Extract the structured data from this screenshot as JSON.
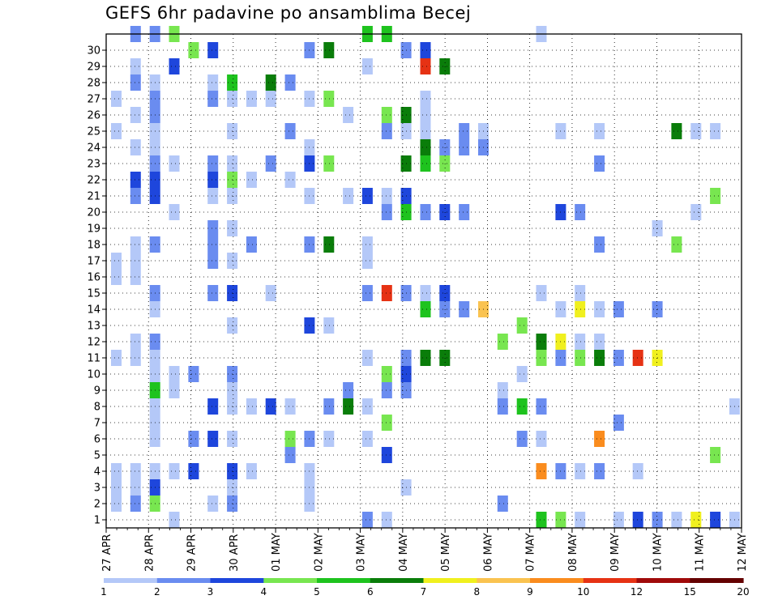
{
  "chart_data": {
    "type": "heatmap",
    "title": "GEFS 6hr padavine po ansamblima Becej",
    "xlabel": "",
    "ylabel": "",
    "x_ticks": [
      "27 APR",
      "28 APR",
      "29 APR",
      "30 APR",
      "01 MAY",
      "02 MAY",
      "03 MAY",
      "04 MAY",
      "05 MAY",
      "06 MAY",
      "07 MAY",
      "08 MAY",
      "09 MAY",
      "10 MAY",
      "11 MAY",
      "12 MAY"
    ],
    "y_ticks": [
      "1",
      "2",
      "3",
      "4",
      "5",
      "6",
      "7",
      "8",
      "9",
      "10",
      "11",
      "12",
      "13",
      "14",
      "15",
      "16",
      "17",
      "18",
      "19",
      "20",
      "21",
      "22",
      "23",
      "24",
      "25",
      "26",
      "27",
      "28",
      "29",
      "30"
    ],
    "x_unit": "6-hourly steps from 27 APR",
    "y_range": [
      0,
      30
    ],
    "grid": true,
    "colorbar": {
      "ticks": [
        "1",
        "2",
        "3",
        "4",
        "5",
        "6",
        "7",
        "8",
        "9",
        "10",
        "12",
        "15",
        "20"
      ],
      "colors": [
        "#b4c8f8",
        "#6a8cf0",
        "#1e46dc",
        "#78e650",
        "#1ec31e",
        "#0a7d0a",
        "#f0f01e",
        "#fac350",
        "#fa8c1e",
        "#e63214",
        "#a00a0a",
        "#640000"
      ]
    },
    "cells": [
      [
        1,
        30,
        2
      ],
      [
        2,
        30,
        2
      ],
      [
        3,
        30,
        4
      ],
      [
        13,
        30,
        5
      ],
      [
        14,
        30,
        5
      ],
      [
        22,
        30,
        1
      ],
      [
        4,
        29,
        4
      ],
      [
        5,
        29,
        3
      ],
      [
        10,
        29,
        2
      ],
      [
        11,
        29,
        6
      ],
      [
        15,
        29,
        2
      ],
      [
        16,
        29,
        3
      ],
      [
        1,
        28,
        1
      ],
      [
        3,
        28,
        3
      ],
      [
        13,
        28,
        1
      ],
      [
        16,
        28,
        10
      ],
      [
        17,
        28,
        6
      ],
      [
        1,
        27,
        2
      ],
      [
        2,
        27,
        1
      ],
      [
        5,
        27,
        1
      ],
      [
        6,
        27,
        5
      ],
      [
        8,
        27,
        6
      ],
      [
        9,
        27,
        2
      ],
      [
        0,
        26,
        1
      ],
      [
        2,
        26,
        2
      ],
      [
        5,
        26,
        2
      ],
      [
        6,
        26,
        1
      ],
      [
        7,
        26,
        1
      ],
      [
        8,
        26,
        1
      ],
      [
        10,
        26,
        1
      ],
      [
        11,
        26,
        4
      ],
      [
        16,
        26,
        1
      ],
      [
        1,
        25,
        1
      ],
      [
        2,
        25,
        2
      ],
      [
        12,
        25,
        1
      ],
      [
        14,
        25,
        4
      ],
      [
        15,
        25,
        6
      ],
      [
        16,
        25,
        4
      ],
      [
        16,
        25,
        1
      ],
      [
        0,
        24,
        1
      ],
      [
        2,
        24,
        1
      ],
      [
        6,
        24,
        1
      ],
      [
        9,
        24,
        2
      ],
      [
        14,
        24,
        2
      ],
      [
        15,
        24,
        1
      ],
      [
        16,
        24,
        1
      ],
      [
        18,
        24,
        2
      ],
      [
        19,
        24,
        1
      ],
      [
        23,
        24,
        1
      ],
      [
        25,
        24,
        1
      ],
      [
        29,
        24,
        6
      ],
      [
        30,
        24,
        1
      ],
      [
        31,
        24,
        1
      ],
      [
        1,
        23,
        1
      ],
      [
        2,
        23,
        1
      ],
      [
        10,
        23,
        1
      ],
      [
        16,
        23,
        6
      ],
      [
        17,
        23,
        2
      ],
      [
        18,
        23,
        2
      ],
      [
        19,
        23,
        2
      ],
      [
        2,
        22,
        2
      ],
      [
        3,
        22,
        1
      ],
      [
        5,
        22,
        2
      ],
      [
        6,
        22,
        1
      ],
      [
        8,
        22,
        2
      ],
      [
        10,
        22,
        3
      ],
      [
        11,
        22,
        4
      ],
      [
        15,
        22,
        6
      ],
      [
        16,
        22,
        5
      ],
      [
        17,
        22,
        4
      ],
      [
        25,
        22,
        2
      ],
      [
        1,
        21,
        3
      ],
      [
        2,
        21,
        3
      ],
      [
        5,
        21,
        3
      ],
      [
        6,
        21,
        4
      ],
      [
        7,
        21,
        1
      ],
      [
        9,
        21,
        1
      ],
      [
        1,
        20,
        2
      ],
      [
        2,
        20,
        3
      ],
      [
        5,
        20,
        1
      ],
      [
        6,
        20,
        1
      ],
      [
        10,
        20,
        1
      ],
      [
        12,
        20,
        1
      ],
      [
        13,
        20,
        3
      ],
      [
        14,
        20,
        1
      ],
      [
        15,
        20,
        1
      ],
      [
        15,
        20,
        3
      ],
      [
        31,
        20,
        4
      ],
      [
        3,
        19,
        1
      ],
      [
        14,
        19,
        2
      ],
      [
        15,
        19,
        5
      ],
      [
        16,
        19,
        2
      ],
      [
        17,
        19,
        3
      ],
      [
        18,
        19,
        2
      ],
      [
        23,
        19,
        3
      ],
      [
        24,
        19,
        2
      ],
      [
        30,
        19,
        1
      ],
      [
        5,
        18,
        2
      ],
      [
        6,
        18,
        1
      ],
      [
        28,
        18,
        1
      ],
      [
        1,
        17,
        1
      ],
      [
        2,
        17,
        2
      ],
      [
        5,
        17,
        2
      ],
      [
        7,
        17,
        2
      ],
      [
        10,
        17,
        2
      ],
      [
        11,
        17,
        6
      ],
      [
        13,
        17,
        1
      ],
      [
        25,
        17,
        2
      ],
      [
        29,
        17,
        4
      ],
      [
        0,
        16,
        1
      ],
      [
        1,
        16,
        1
      ],
      [
        5,
        16,
        2
      ],
      [
        6,
        16,
        1
      ],
      [
        13,
        16,
        1
      ],
      [
        1,
        15,
        1
      ],
      [
        0,
        15,
        1
      ],
      [
        2,
        14,
        2
      ],
      [
        5,
        14,
        2
      ],
      [
        6,
        14,
        3
      ],
      [
        8,
        14,
        1
      ],
      [
        13,
        14,
        2
      ],
      [
        14,
        14,
        10
      ],
      [
        15,
        14,
        2
      ],
      [
        16,
        14,
        1
      ],
      [
        17,
        14,
        3
      ],
      [
        22,
        14,
        1
      ],
      [
        24,
        14,
        1
      ],
      [
        2,
        13,
        1
      ],
      [
        16,
        13,
        5
      ],
      [
        17,
        13,
        2
      ],
      [
        18,
        13,
        2
      ],
      [
        19,
        13,
        8
      ],
      [
        23,
        13,
        1
      ],
      [
        24,
        13,
        7
      ],
      [
        25,
        13,
        1
      ],
      [
        26,
        13,
        2
      ],
      [
        28,
        13,
        2
      ],
      [
        6,
        12,
        1
      ],
      [
        10,
        12,
        3
      ],
      [
        11,
        12,
        1
      ],
      [
        21,
        12,
        4
      ],
      [
        1,
        11,
        1
      ],
      [
        2,
        11,
        2
      ],
      [
        20,
        11,
        4
      ],
      [
        22,
        11,
        6
      ],
      [
        23,
        11,
        7
      ],
      [
        24,
        11,
        1
      ],
      [
        25,
        11,
        1
      ],
      [
        0,
        10,
        1
      ],
      [
        1,
        10,
        1
      ],
      [
        2,
        10,
        1
      ],
      [
        13,
        10,
        1
      ],
      [
        15,
        10,
        2
      ],
      [
        16,
        10,
        6
      ],
      [
        17,
        10,
        6
      ],
      [
        22,
        10,
        4
      ],
      [
        23,
        10,
        2
      ],
      [
        24,
        10,
        4
      ],
      [
        25,
        10,
        6
      ],
      [
        26,
        10,
        2
      ],
      [
        27,
        10,
        10
      ],
      [
        28,
        10,
        7
      ],
      [
        2,
        9,
        1
      ],
      [
        3,
        9,
        1
      ],
      [
        4,
        9,
        2
      ],
      [
        6,
        9,
        2
      ],
      [
        14,
        9,
        4
      ],
      [
        15,
        9,
        3
      ],
      [
        21,
        9,
        1
      ],
      [
        2,
        8,
        5
      ],
      [
        3,
        8,
        1
      ],
      [
        6,
        8,
        1
      ],
      [
        12,
        8,
        2
      ],
      [
        14,
        8,
        2
      ],
      [
        15,
        8,
        2
      ],
      [
        20,
        8,
        1
      ],
      [
        2,
        7,
        1
      ],
      [
        5,
        7,
        3
      ],
      [
        6,
        7,
        1
      ],
      [
        7,
        7,
        1
      ],
      [
        8,
        7,
        3
      ],
      [
        9,
        7,
        1
      ],
      [
        11,
        7,
        2
      ],
      [
        12,
        7,
        6
      ],
      [
        13,
        7,
        1
      ],
      [
        20,
        7,
        2
      ],
      [
        21,
        7,
        5
      ],
      [
        22,
        7,
        2
      ],
      [
        32,
        7,
        1
      ],
      [
        2,
        6,
        1
      ],
      [
        14,
        6,
        4
      ],
      [
        26,
        6,
        2
      ],
      [
        2,
        5,
        1
      ],
      [
        4,
        5,
        2
      ],
      [
        5,
        5,
        3
      ],
      [
        6,
        5,
        1
      ],
      [
        9,
        5,
        4
      ],
      [
        10,
        5,
        2
      ],
      [
        11,
        5,
        1
      ],
      [
        13,
        5,
        1
      ],
      [
        21,
        5,
        2
      ],
      [
        22,
        5,
        1
      ],
      [
        25,
        5,
        9
      ],
      [
        9,
        4,
        2
      ],
      [
        14,
        4,
        3
      ],
      [
        31,
        4,
        4
      ],
      [
        0,
        3,
        1
      ],
      [
        1,
        3,
        1
      ],
      [
        2,
        3,
        1
      ],
      [
        3,
        3,
        1
      ],
      [
        4,
        3,
        3
      ],
      [
        6,
        3,
        3
      ],
      [
        7,
        3,
        1
      ],
      [
        10,
        3,
        1
      ],
      [
        22,
        3,
        9
      ],
      [
        23,
        3,
        2
      ],
      [
        24,
        3,
        1
      ],
      [
        25,
        3,
        2
      ],
      [
        27,
        3,
        1
      ],
      [
        0,
        2,
        1
      ],
      [
        1,
        2,
        1
      ],
      [
        2,
        2,
        3
      ],
      [
        6,
        2,
        1
      ],
      [
        10,
        2,
        1
      ],
      [
        15,
        2,
        1
      ],
      [
        0,
        1,
        1
      ],
      [
        1,
        1,
        2
      ],
      [
        2,
        1,
        4
      ],
      [
        5,
        1,
        1
      ],
      [
        6,
        1,
        2
      ],
      [
        10,
        1,
        1
      ],
      [
        20,
        1,
        2
      ],
      [
        3,
        0,
        1
      ],
      [
        13,
        0,
        2
      ],
      [
        14,
        0,
        1
      ],
      [
        22,
        0,
        5
      ],
      [
        23,
        0,
        4
      ],
      [
        24,
        0,
        1
      ],
      [
        26,
        0,
        1
      ],
      [
        27,
        0,
        3
      ],
      [
        28,
        0,
        2
      ],
      [
        29,
        0,
        1
      ],
      [
        30,
        0,
        7
      ],
      [
        31,
        0,
        3
      ],
      [
        32,
        0,
        1
      ]
    ]
  }
}
